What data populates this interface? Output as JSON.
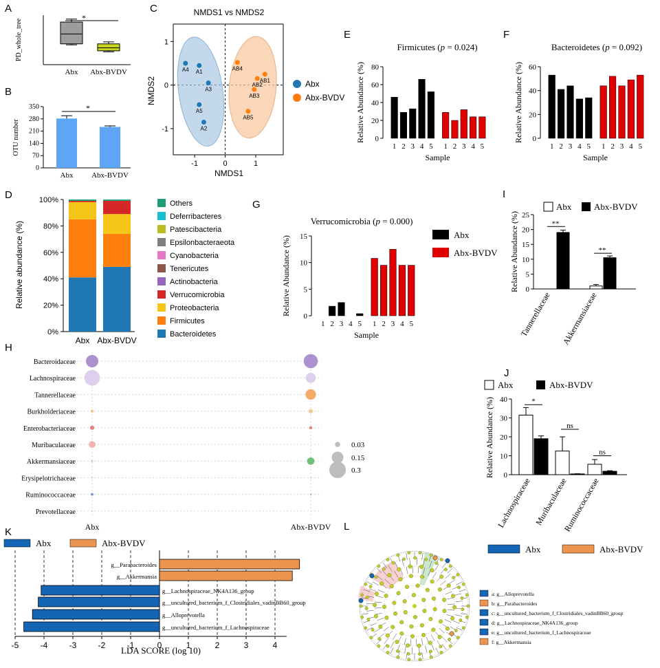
{
  "panel_letters": {
    "A": "A",
    "B": "B",
    "C": "C",
    "D": "D",
    "E": "E",
    "F": "F",
    "G": "G",
    "H": "H",
    "I": "I",
    "J": "J",
    "K": "K",
    "L": "L"
  },
  "colors": {
    "abx_blue": "#1f77b4",
    "abx_bvdv_orange": "#ff7f0e",
    "ellipse_blue": "#a9c8e3",
    "ellipse_orange": "#f9c9a3",
    "bar_blue": "#5da6f5",
    "box_gray": "#9d9d9d",
    "box_yellow": "#c8d622",
    "bar_black": "#000000",
    "bar_red": "#e00000",
    "lda_blue": "#1565b5",
    "lda_orange": "#ec9550",
    "bubble_purple": "#9f7fc7",
    "bubble_orange": "#f39b4a",
    "bubble_green": "#5bb561",
    "bubble_red": "#e46a6a",
    "bubble_blue": "#6389c5"
  },
  "chart_data": [
    {
      "id": "A",
      "type": "box",
      "ylabel": "PD_whole_tree",
      "categories": [
        "Abx",
        "Abx-BVDV"
      ],
      "boxes": [
        {
          "name": "Abx",
          "min": 17.5,
          "q1": 17.6,
          "median": 18.6,
          "q3": 19.8,
          "max": 20.1
        },
        {
          "name": "Abx-BVDV",
          "min": 16.8,
          "q1": 16.9,
          "median": 17.2,
          "q3": 17.6,
          "max": 17.8
        }
      ],
      "ylim": [
        15.5,
        20.5
      ],
      "significance": "*"
    },
    {
      "id": "B",
      "type": "bar",
      "ylabel": "OTU number",
      "categories": [
        "Abx",
        "Abx-BVDV"
      ],
      "values": [
        282,
        234
      ],
      "errors": [
        16,
        6
      ],
      "yticks": [
        "0",
        "70",
        "140",
        "210",
        "280",
        "350"
      ],
      "ylim": [
        0,
        350
      ],
      "significance": "*"
    },
    {
      "id": "C",
      "type": "scatter",
      "title": "NMDS1 vs NMDS2",
      "xlabel": "NMDS1",
      "ylabel": "NMDS2",
      "xlim": [
        -1.7,
        1.9
      ],
      "ylim": [
        -1.6,
        1.4
      ],
      "xticks": [
        "-1",
        "0",
        "1"
      ],
      "yticks": [
        "1",
        "0",
        "-1"
      ],
      "legend": [
        "Abx",
        "Abx-BVDV"
      ],
      "series": [
        {
          "name": "Abx",
          "points": [
            {
              "label": "A4",
              "x": -1.3,
              "y": 0.5
            },
            {
              "label": "A1",
              "x": -0.85,
              "y": 0.45
            },
            {
              "label": "A3",
              "x": -0.55,
              "y": 0.05
            },
            {
              "label": "A5",
              "x": -0.85,
              "y": -0.45
            },
            {
              "label": "A2",
              "x": -0.7,
              "y": -0.85
            }
          ]
        },
        {
          "name": "Abx-BVDV",
          "points": [
            {
              "label": "AB4",
              "x": 0.4,
              "y": 0.52
            },
            {
              "label": "AB1",
              "x": 1.3,
              "y": 0.25
            },
            {
              "label": "AB2",
              "x": 1.05,
              "y": 0.15
            },
            {
              "label": "AB3",
              "x": 0.95,
              "y": -0.1
            },
            {
              "label": "AB5",
              "x": 0.75,
              "y": -0.6
            }
          ]
        }
      ]
    },
    {
      "id": "D",
      "type": "stacked-bar",
      "ylabel": "Relative abundance (%)",
      "categories": [
        "Abx",
        "Abx-BVDV"
      ],
      "yticks": [
        "0%",
        "20%",
        "40%",
        "60%",
        "80%",
        "100%"
      ],
      "legend": [
        "Others",
        "Deferribacteres",
        "Patescibacteria",
        "Epsilonbacteraeota",
        "Cyanobacteria",
        "Tenericutes",
        "Actinobacteria",
        "Verrucomicrobia",
        "Proteobacteria",
        "Firmicutes",
        "Bacteroidetes"
      ],
      "legend_colors": [
        "#1b9e77",
        "#17becf",
        "#bcbd22",
        "#7f7f7f",
        "#e377c2",
        "#8c564b",
        "#9467bd",
        "#d62728",
        "#f5c518",
        "#ff7f0e",
        "#1f77b4"
      ],
      "series": [
        {
          "name": "Bacteroidetes",
          "values": [
            41,
            49
          ]
        },
        {
          "name": "Firmicutes",
          "values": [
            44,
            25
          ]
        },
        {
          "name": "Proteobacteria",
          "values": [
            13,
            15
          ]
        },
        {
          "name": "Verrucomicrobia",
          "values": [
            1,
            10
          ]
        },
        {
          "name": "Others",
          "values": [
            1,
            1
          ]
        }
      ]
    },
    {
      "id": "E",
      "type": "bar",
      "title": "Firmicutes (p = 0.024)",
      "title_pre": "Firmicutes (",
      "title_p": "p",
      "title_post": " = 0.024)",
      "ylabel": "Relative Abundance (%)",
      "xlabel": "Sample",
      "categories": [
        "1",
        "2",
        "3",
        "4",
        "5",
        "1",
        "2",
        "3",
        "4",
        "5"
      ],
      "values": [
        46,
        29,
        33,
        66,
        52,
        29,
        20,
        32,
        24,
        24
      ],
      "groups": [
        "Abx",
        "Abx",
        "Abx",
        "Abx",
        "Abx",
        "Abx-BVDV",
        "Abx-BVDV",
        "Abx-BVDV",
        "Abx-BVDV",
        "Abx-BVDV"
      ],
      "yticks": [
        "0",
        "20",
        "40",
        "60",
        "80"
      ],
      "ylim": [
        0,
        80
      ]
    },
    {
      "id": "F",
      "type": "bar",
      "title": "Bacteroidetes (p = 0.092)",
      "title_pre": "Bacteroidetes (",
      "title_p": "p",
      "title_post": " = 0.092)",
      "ylabel": "Relative Abundance (%)",
      "xlabel": "Sample",
      "categories": [
        "1",
        "2",
        "3",
        "4",
        "5",
        "1",
        "2",
        "3",
        "4",
        "5"
      ],
      "values": [
        53,
        41,
        44,
        33,
        34,
        44,
        52,
        44,
        49,
        53
      ],
      "groups": [
        "Abx",
        "Abx",
        "Abx",
        "Abx",
        "Abx",
        "Abx-BVDV",
        "Abx-BVDV",
        "Abx-BVDV",
        "Abx-BVDV",
        "Abx-BVDV"
      ],
      "yticks": [
        "0",
        "20",
        "40",
        "60"
      ],
      "ylim": [
        0,
        60
      ]
    },
    {
      "id": "G",
      "type": "bar",
      "title": "Verrucomicrobia (p = 0.000)",
      "title_pre": "Verrucomicrobia (",
      "title_p": "p",
      "title_post": " = 0.000)",
      "ylabel": "Relative Abundance (%)",
      "xlabel": "Sample",
      "categories": [
        "1",
        "2",
        "3",
        "4",
        "5",
        "1",
        "2",
        "3",
        "4",
        "5"
      ],
      "values": [
        0,
        1.8,
        2.5,
        0,
        0.4,
        10.8,
        9.5,
        12.5,
        9.5,
        9.5
      ],
      "groups": [
        "Abx",
        "Abx",
        "Abx",
        "Abx",
        "Abx",
        "Abx-BVDV",
        "Abx-BVDV",
        "Abx-BVDV",
        "Abx-BVDV",
        "Abx-BVDV"
      ],
      "yticks": [
        "0",
        "5",
        "10",
        "15"
      ],
      "ylim": [
        0,
        15
      ],
      "legend": [
        "Abx",
        "Abx-BVDV"
      ]
    },
    {
      "id": "I",
      "type": "bar",
      "ylabel": "Relative Abundance (%)",
      "categories": [
        "Tannerellaceae",
        "Akkermansiaceae"
      ],
      "series": [
        {
          "name": "Abx",
          "values": [
            0,
            1
          ],
          "errors": [
            0,
            0.5
          ]
        },
        {
          "name": "Abx-BVDV",
          "values": [
            19,
            10.5
          ],
          "errors": [
            0.8,
            0.6
          ]
        }
      ],
      "yticks": [
        "0",
        "5",
        "10",
        "15",
        "20",
        "25"
      ],
      "ylim": [
        0,
        25
      ],
      "significance": [
        "**",
        "**"
      ],
      "legend": [
        "Abx",
        "Abx-BVDV"
      ]
    },
    {
      "id": "J",
      "type": "bar",
      "ylabel": "Relative Abundance (%)",
      "categories": [
        "Lachnospiraceae",
        "Muribaculaceae",
        "Ruminococcaceae"
      ],
      "series": [
        {
          "name": "Abx",
          "values": [
            31.5,
            12.5,
            5.5
          ],
          "errors": [
            4,
            7.5,
            2.5
          ]
        },
        {
          "name": "Abx-BVDV",
          "values": [
            19,
            0.4,
            1.8
          ],
          "errors": [
            1.5,
            0.1,
            0.3
          ]
        }
      ],
      "yticks": [
        "0",
        "10",
        "20",
        "30",
        "40"
      ],
      "ylim": [
        0,
        40
      ],
      "significance": [
        "*",
        "ns",
        "ns"
      ],
      "legend": [
        "Abx",
        "Abx-BVDV"
      ]
    },
    {
      "id": "H",
      "type": "bubble",
      "rows": [
        "Bacteroidaceae",
        "Lachnospiraceae",
        "Tannerellaceae",
        "Burkholderiaceae",
        "Enterobacteriaceae",
        "Muribaculaceae",
        "Akkermansiaceae",
        "Erysipelotrichaceae",
        "Ruminococcaceae",
        "Prevotellaceae"
      ],
      "columns": [
        "Abx",
        "Abx-BVDV"
      ],
      "size_legend": [
        "0.03",
        "0.15",
        "0.3"
      ],
      "cells": [
        {
          "row": 0,
          "col": 0,
          "value": 0.17,
          "color": "#9f7fc7"
        },
        {
          "row": 0,
          "col": 1,
          "value": 0.22,
          "color": "#9f7fc7"
        },
        {
          "row": 1,
          "col": 0,
          "value": 0.27,
          "color": "#d8c7ea"
        },
        {
          "row": 1,
          "col": 1,
          "value": 0.11,
          "color": "#d8c7ea"
        },
        {
          "row": 2,
          "col": 0,
          "value": 0.0,
          "color": "#f39b4a"
        },
        {
          "row": 2,
          "col": 1,
          "value": 0.12,
          "color": "#f39b4a"
        },
        {
          "row": 3,
          "col": 0,
          "value": 0.01,
          "color": "#f5c08a"
        },
        {
          "row": 3,
          "col": 1,
          "value": 0.02,
          "color": "#f5c08a"
        },
        {
          "row": 4,
          "col": 0,
          "value": 0.02,
          "color": "#e46a6a"
        },
        {
          "row": 4,
          "col": 1,
          "value": 0.01,
          "color": "#e46a6a"
        },
        {
          "row": 5,
          "col": 0,
          "value": 0.05,
          "color": "#f1a6a6"
        },
        {
          "row": 5,
          "col": 1,
          "value": 0.0,
          "color": "#f1a6a6"
        },
        {
          "row": 6,
          "col": 0,
          "value": 0.001,
          "color": "#9ed09f"
        },
        {
          "row": 6,
          "col": 1,
          "value": 0.06,
          "color": "#5bb561"
        },
        {
          "row": 7,
          "col": 0,
          "value": 0.003,
          "color": "#e8d89a"
        },
        {
          "row": 7,
          "col": 1,
          "value": 0.003,
          "color": "#e8d89a"
        },
        {
          "row": 8,
          "col": 0,
          "value": 0.008,
          "color": "#6389c5"
        },
        {
          "row": 8,
          "col": 1,
          "value": 0.002,
          "color": "#9fb6dd"
        },
        {
          "row": 9,
          "col": 0,
          "value": 0.004,
          "color": "#bfe0dc"
        },
        {
          "row": 9,
          "col": 1,
          "value": 0.0,
          "color": "#bfe0dc"
        }
      ]
    },
    {
      "id": "K",
      "type": "bar",
      "orientation": "horizontal",
      "xlabel": "LDA SCORE (log 10)",
      "xticks": [
        "-5",
        "-4",
        "-3",
        "-2",
        "-1",
        "0",
        "1",
        "2",
        "3",
        "4"
      ],
      "xlim": [
        -5,
        5
      ],
      "legend": [
        "Abx",
        "Abx-BVDV"
      ],
      "bars": [
        {
          "label": "g__Parabacteroides",
          "value": 4.85,
          "group": "Abx-BVDV"
        },
        {
          "label": "g__Akkermansia",
          "value": 4.6,
          "group": "Abx-BVDV"
        },
        {
          "label": "g__Lachnospiraceae_NK4A136_group",
          "value": -4.1,
          "group": "Abx"
        },
        {
          "label": "g__uncultured_bacterium_f_Clostridiales_vadinBB60_group",
          "value": -4.2,
          "group": "Abx"
        },
        {
          "label": "g__Alloprevotella",
          "value": -4.4,
          "group": "Abx"
        },
        {
          "label": "g__uncultured_bacterium_f_Lachnospiraceae",
          "value": -4.7,
          "group": "Abx"
        }
      ]
    },
    {
      "id": "L",
      "type": "cladogram",
      "legend": [
        "Abx",
        "Abx-BVDV"
      ],
      "key": [
        {
          "text": "a: g__Alloprevotella",
          "group": "Abx"
        },
        {
          "text": "b: g__Parabacteroides",
          "group": "Abx-BVDV"
        },
        {
          "text": "c: g__uncultured_bacterium_f_Clostridiales_vadinBB60_group",
          "group": "Abx"
        },
        {
          "text": "d: g__Lachnospiraceae_NK4A136_group",
          "group": "Abx"
        },
        {
          "text": "e: g__uncultured_bacterium_f_Lachnospiraceae",
          "group": "Abx"
        },
        {
          "text": "f: g__Akkermansia",
          "group": "Abx-BVDV"
        }
      ]
    }
  ]
}
